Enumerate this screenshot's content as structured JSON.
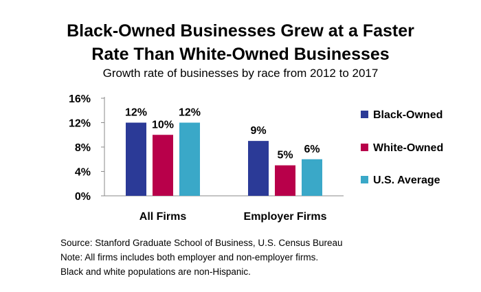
{
  "chart_data": {
    "type": "bar",
    "title_lines": [
      "Black-Owned Businesses Grew at a Faster",
      "Rate Than White-Owned Businesses"
    ],
    "subtitle": "Growth rate of businesses by race from 2012 to 2017",
    "categories": [
      "All Firms",
      "Employer Firms"
    ],
    "series": [
      {
        "name": "Black-Owned",
        "values": [
          12,
          9
        ],
        "labels": [
          "12%",
          "9%"
        ],
        "color": "#2b3a97"
      },
      {
        "name": "White-Owned",
        "values": [
          10,
          5
        ],
        "labels": [
          "10%",
          "5%"
        ],
        "color": "#b8004a"
      },
      {
        "name": "U.S. Average",
        "values": [
          12,
          6
        ],
        "labels": [
          "12%",
          "6%"
        ],
        "color": "#3aa8c8"
      }
    ],
    "ylim": [
      0,
      16
    ],
    "yticks": [
      0,
      4,
      8,
      12,
      16
    ],
    "ytick_labels": [
      "0%",
      "4%",
      "8%",
      "12%",
      "16%"
    ],
    "legend_position": "right",
    "grid": false
  },
  "notes": [
    "Source: Stanford Graduate School of Business, U.S. Census Bureau",
    "Note: All firms includes both employer and non-employer firms.",
    "Black and white populations are non-Hispanic."
  ]
}
